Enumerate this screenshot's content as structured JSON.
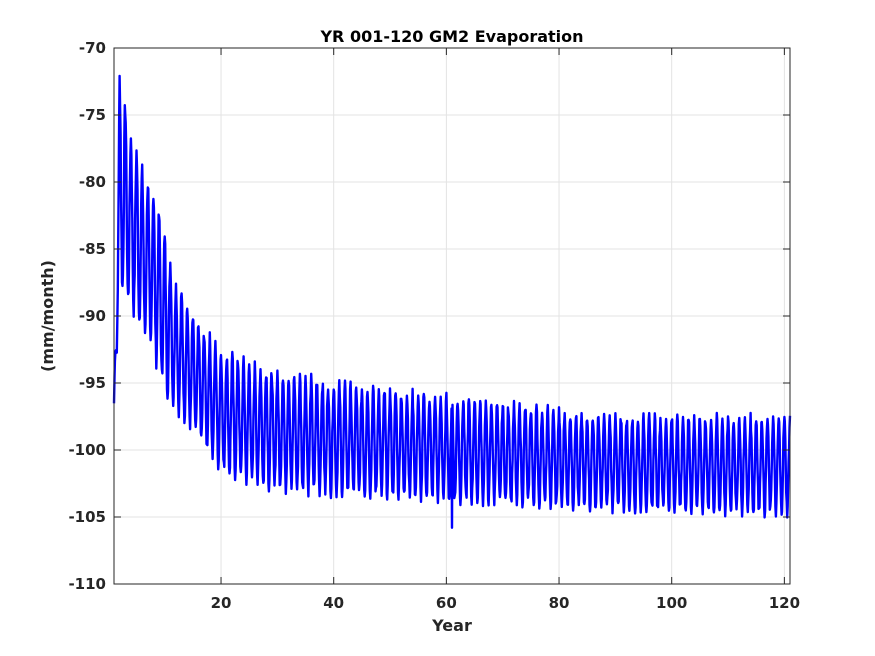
{
  "chart_data": {
    "type": "line",
    "title": "YR 001-120 GM2 Evaporation",
    "xlabel": "Year",
    "ylabel": "(mm/month)",
    "xlim": [
      1,
      121
    ],
    "ylim": [
      -110,
      -70
    ],
    "xticks": [
      20,
      40,
      60,
      80,
      100,
      120
    ],
    "xtick_labels": [
      "20",
      "40",
      "60",
      "80",
      "100",
      "120"
    ],
    "yticks": [
      -110,
      -105,
      -100,
      -95,
      -90,
      -85,
      -80,
      -75,
      -70
    ],
    "ytick_labels": [
      "-110",
      "-105",
      "-100",
      "-95",
      "-90",
      "-85",
      "-80",
      "-75",
      "-70"
    ],
    "grid": true,
    "line_color": "#0000ff",
    "sampling": "monthly",
    "series": [
      {
        "annual_cycle_envelope": {
          "year": [
            1,
            2,
            3,
            4,
            5,
            6,
            8,
            10,
            12,
            15,
            20,
            25,
            30,
            40,
            50,
            60,
            70,
            80,
            90,
            100,
            110,
            120
          ],
          "annual_max": [
            -96.5,
            -72.0,
            -74.0,
            -76.5,
            -77.5,
            -79.0,
            -80.5,
            -84.0,
            -87.5,
            -90.0,
            -92.5,
            -93.5,
            -94.0,
            -95.0,
            -95.5,
            -96.0,
            -96.5,
            -97.0,
            -97.5,
            -97.5,
            -97.5,
            -97.5
          ],
          "annual_min": [
            -97.0,
            -88.0,
            -88.5,
            -89.5,
            -90.0,
            -91.0,
            -93.0,
            -95.5,
            -97.0,
            -98.5,
            -101.5,
            -102.5,
            -103.0,
            -103.3,
            -103.5,
            -103.8,
            -104.0,
            -104.3,
            -104.5,
            -104.5,
            -104.8,
            -104.8
          ]
        },
        "annotations": {
          "spike_min": {
            "year": 61,
            "value": -105.8
          }
        }
      }
    ]
  }
}
